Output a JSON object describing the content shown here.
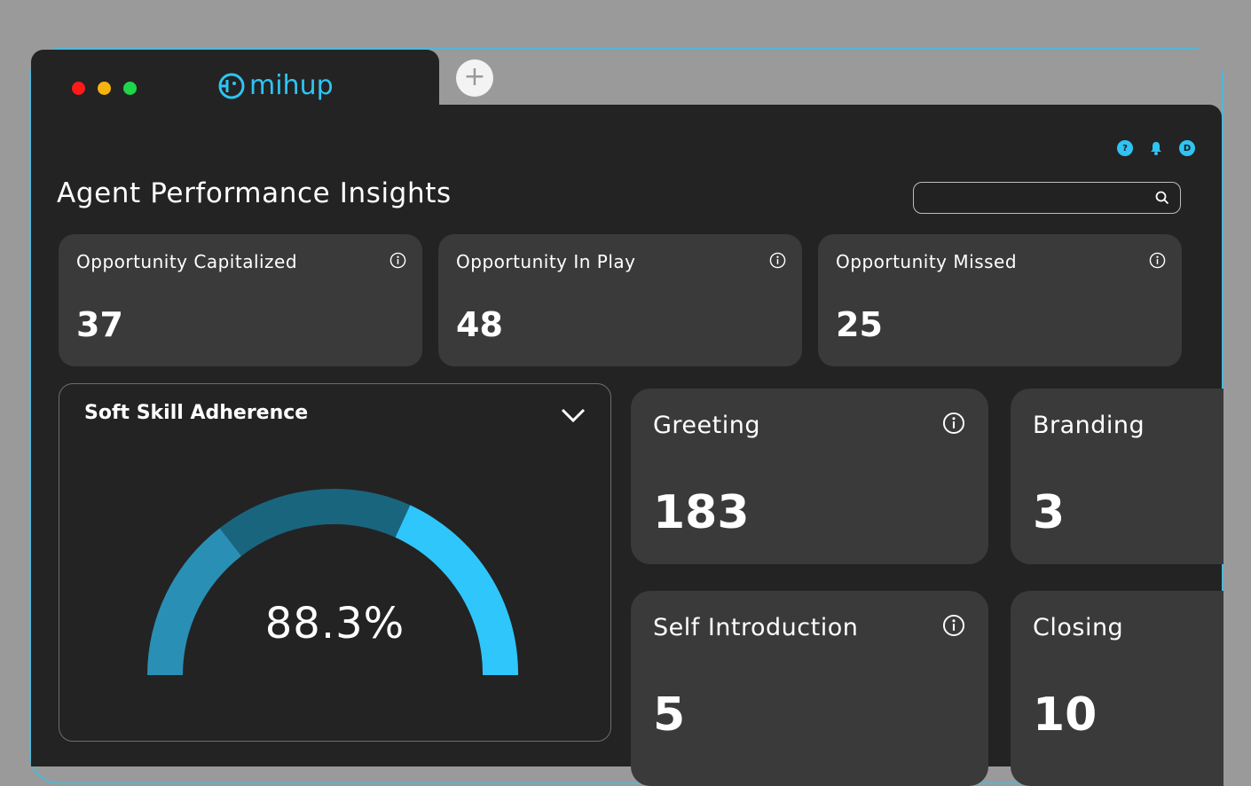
{
  "window": {
    "dots": [
      "#ff1a1a",
      "#f5b40f",
      "#1ed64a"
    ],
    "accent": "#2fc4f2",
    "new_tab_label": "+"
  },
  "brand": {
    "name": "mihup"
  },
  "header_icons": {
    "help": "?",
    "avatar": "D"
  },
  "page": {
    "title": "Agent Performance Insights"
  },
  "search": {
    "placeholder": "",
    "value": ""
  },
  "summary_cards": [
    {
      "label": "Opportunity Capitalized",
      "value": "37"
    },
    {
      "label": "Opportunity In Play",
      "value": "48"
    },
    {
      "label": "Opportunity Missed",
      "value": "25"
    }
  ],
  "gauge": {
    "title": "Soft Skill Adherence",
    "value_label": "88.3%",
    "colors": [
      "#2a8fb4",
      "#1a657e",
      "#2ec6fb"
    ]
  },
  "skill_cards": [
    {
      "label": "Greeting",
      "value": "183"
    },
    {
      "label": "Branding",
      "value": "3"
    },
    {
      "label": "Self Introduction",
      "value": "5"
    },
    {
      "label": "Closing",
      "value": "10"
    }
  ]
}
